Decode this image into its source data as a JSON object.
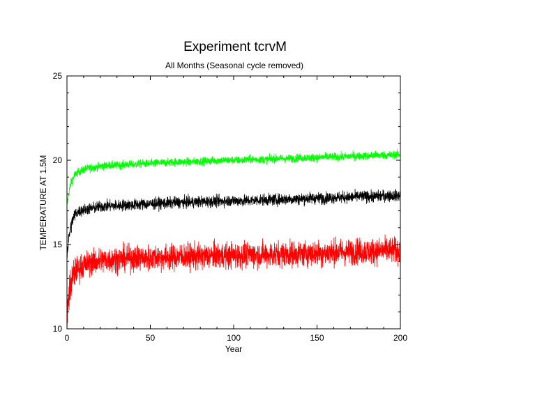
{
  "chart_data": {
    "type": "line",
    "title": "Experiment tcrvM",
    "subtitle": "All Months (Seasonal cycle removed)",
    "xlabel": "Year",
    "ylabel": "TEMPERATURE AT 1.5M",
    "xlim": [
      0,
      200
    ],
    "ylim": [
      10,
      25
    ],
    "xticks": [
      0,
      50,
      100,
      150,
      200
    ],
    "yticks": [
      10,
      15,
      20,
      25
    ],
    "grid": false,
    "legend": "none",
    "series": [
      {
        "color": "#00ff00",
        "x": [
          0,
          1,
          2,
          3,
          4,
          5,
          6,
          8,
          10,
          12,
          15,
          18,
          20,
          25,
          30,
          35,
          40,
          45,
          50,
          55,
          60,
          65,
          70,
          75,
          80,
          85,
          90,
          95,
          100,
          105,
          110,
          115,
          120,
          125,
          130,
          135,
          140,
          145,
          150,
          155,
          160,
          165,
          170,
          175,
          180,
          185,
          190,
          195,
          200
        ],
        "values": [
          17.3,
          18.0,
          18.5,
          18.8,
          19.0,
          19.15,
          19.25,
          19.35,
          19.45,
          19.5,
          19.55,
          19.6,
          19.65,
          19.7,
          19.7,
          19.75,
          19.75,
          19.8,
          19.8,
          19.85,
          19.85,
          19.9,
          19.9,
          19.9,
          19.95,
          19.95,
          20.0,
          20.0,
          20.0,
          20.0,
          20.05,
          20.05,
          20.05,
          20.1,
          20.1,
          20.1,
          20.15,
          20.15,
          20.15,
          20.2,
          20.2,
          20.2,
          20.25,
          20.25,
          20.25,
          20.3,
          20.3,
          20.3,
          20.35
        ],
        "noise": 0.12
      },
      {
        "color": "#000000",
        "x": [
          0,
          1,
          2,
          3,
          4,
          5,
          6,
          8,
          10,
          12,
          15,
          18,
          20,
          25,
          30,
          35,
          40,
          45,
          50,
          55,
          60,
          65,
          70,
          75,
          80,
          85,
          90,
          95,
          100,
          105,
          110,
          115,
          120,
          125,
          130,
          135,
          140,
          145,
          150,
          155,
          160,
          165,
          170,
          175,
          180,
          185,
          190,
          195,
          200
        ],
        "values": [
          14.3,
          15.3,
          15.9,
          16.3,
          16.6,
          16.8,
          16.9,
          17.0,
          17.05,
          17.1,
          17.15,
          17.2,
          17.25,
          17.3,
          17.3,
          17.35,
          17.35,
          17.4,
          17.4,
          17.45,
          17.45,
          17.5,
          17.5,
          17.5,
          17.55,
          17.55,
          17.55,
          17.6,
          17.6,
          17.6,
          17.6,
          17.65,
          17.65,
          17.65,
          17.7,
          17.7,
          17.7,
          17.75,
          17.75,
          17.75,
          17.8,
          17.8,
          17.8,
          17.85,
          17.85,
          17.85,
          17.9,
          17.9,
          17.9
        ],
        "noise": 0.17
      },
      {
        "color": "#ff0000",
        "x": [
          0,
          1,
          2,
          3,
          4,
          5,
          6,
          8,
          10,
          12,
          15,
          18,
          20,
          25,
          30,
          35,
          40,
          45,
          50,
          55,
          60,
          65,
          70,
          75,
          80,
          85,
          90,
          95,
          100,
          105,
          110,
          115,
          120,
          125,
          130,
          135,
          140,
          145,
          150,
          155,
          160,
          165,
          170,
          175,
          180,
          185,
          190,
          195,
          200
        ],
        "values": [
          10.4,
          11.9,
          12.5,
          12.9,
          13.2,
          13.4,
          13.5,
          13.65,
          13.75,
          13.85,
          13.95,
          14.0,
          14.05,
          14.1,
          14.15,
          14.15,
          14.2,
          14.2,
          14.2,
          14.25,
          14.25,
          14.25,
          14.3,
          14.3,
          14.3,
          14.3,
          14.35,
          14.35,
          14.35,
          14.35,
          14.4,
          14.4,
          14.4,
          14.4,
          14.45,
          14.45,
          14.45,
          14.5,
          14.5,
          14.5,
          14.55,
          14.55,
          14.55,
          14.6,
          14.6,
          14.6,
          14.65,
          14.65,
          14.65
        ],
        "noise": 0.38
      }
    ]
  }
}
